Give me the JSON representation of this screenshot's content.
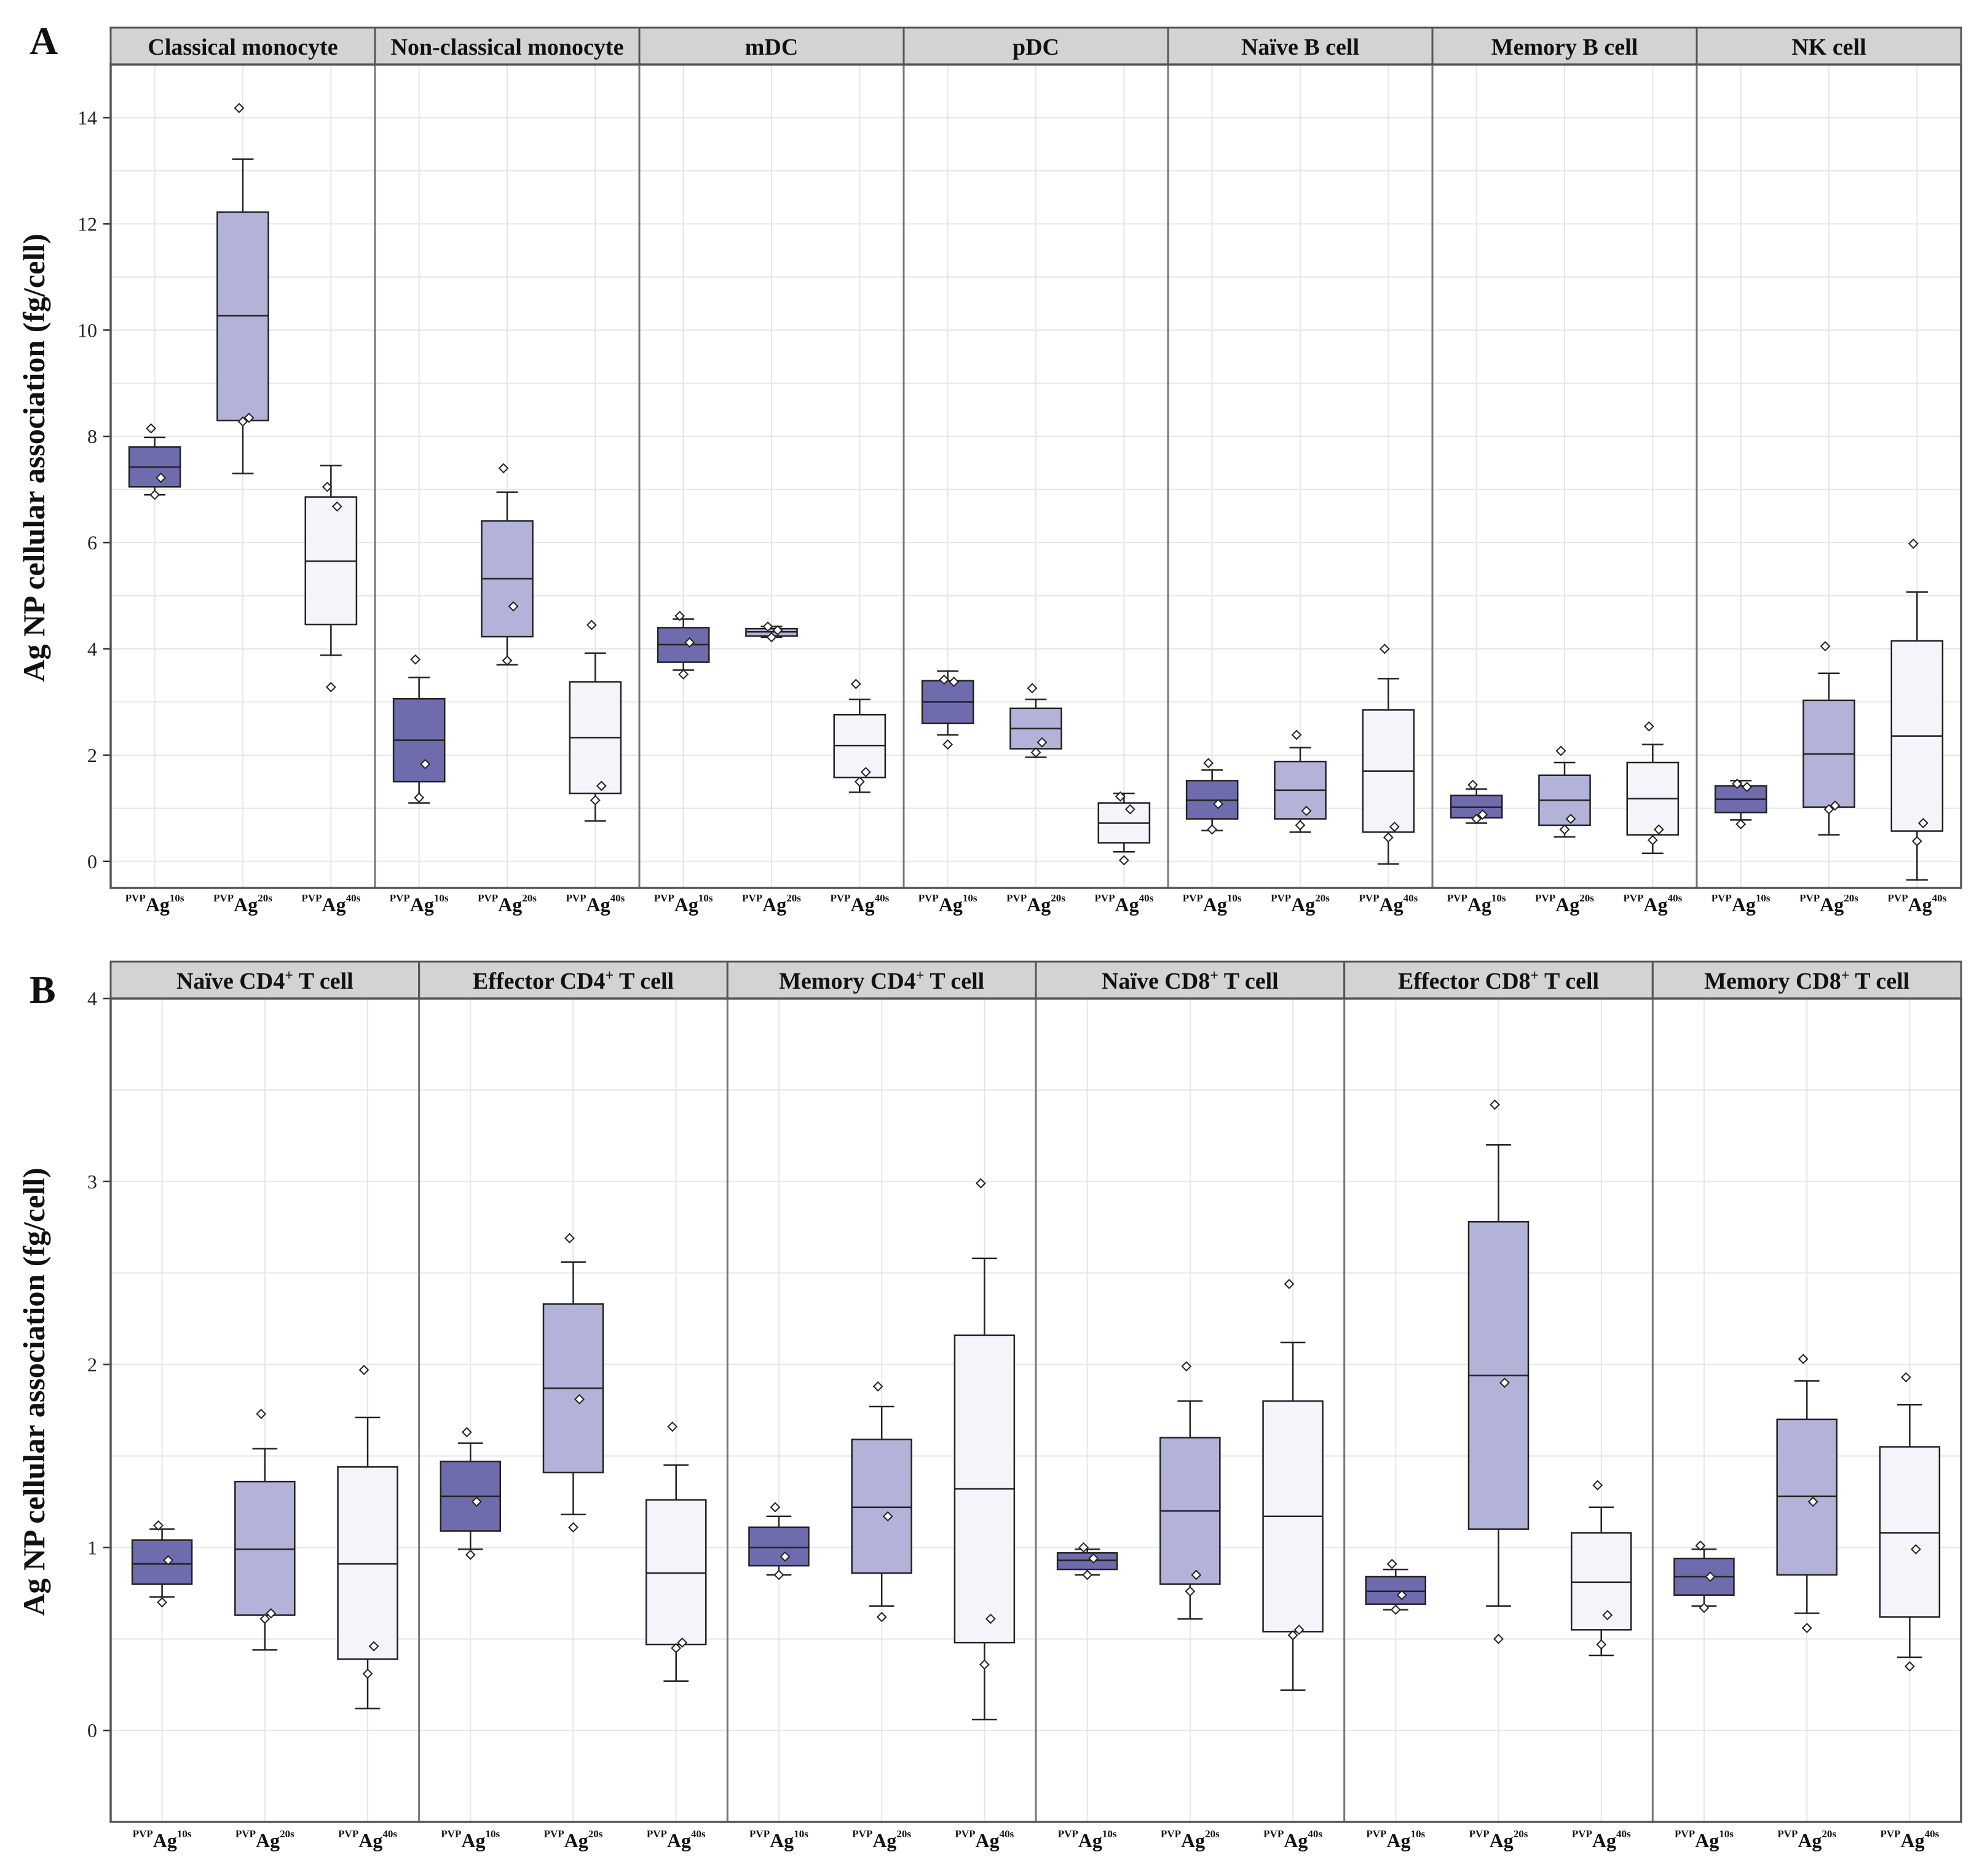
{
  "figure": {
    "panel_a_letter": "A",
    "panel_b_letter": "B"
  },
  "colors": {
    "Ag10s": "#6e6cad",
    "Ag20s": "#b3b2d8",
    "Ag40s": "#f4f4fb",
    "frame": "#555555",
    "strip": "#d3d3d3",
    "grid": "#e6e6e6"
  },
  "chart_data": [
    {
      "type": "box",
      "panel": "A",
      "ylabel": "Ag NP cellular association (fg/cell)",
      "ylim": [
        -0.5,
        15
      ],
      "yticks": [
        0,
        2,
        4,
        6,
        8,
        10,
        12,
        14
      ],
      "series_labels": [
        "Ag10s",
        "Ag20s",
        "Ag40s"
      ],
      "tick_prefix": "PVP",
      "tick_base": "Ag",
      "tick_sups": [
        "10s",
        "20s",
        "40s"
      ],
      "facets": [
        {
          "name": "Classical monocyte",
          "boxes": [
            {
              "series": "Ag10s",
              "min": 6.9,
              "q1": 7.05,
              "median": 7.42,
              "q3": 7.8,
              "max": 7.98,
              "points": [
                8.15,
                7.22,
                6.9
              ]
            },
            {
              "series": "Ag20s",
              "min": 7.3,
              "q1": 8.3,
              "median": 10.27,
              "q3": 12.22,
              "max": 13.22,
              "points": [
                14.18,
                8.35,
                8.28
              ]
            },
            {
              "series": "Ag40s",
              "min": 3.88,
              "q1": 4.46,
              "median": 5.65,
              "q3": 6.86,
              "max": 7.45,
              "points": [
                7.05,
                6.68,
                3.28
              ]
            }
          ]
        },
        {
          "name": "Non-classical monocyte",
          "boxes": [
            {
              "series": "Ag10s",
              "min": 1.1,
              "q1": 1.5,
              "median": 2.28,
              "q3": 3.06,
              "max": 3.46,
              "points": [
                3.8,
                1.83,
                1.2
              ]
            },
            {
              "series": "Ag20s",
              "min": 3.7,
              "q1": 4.23,
              "median": 5.32,
              "q3": 6.41,
              "max": 6.95,
              "points": [
                7.4,
                4.8,
                3.78
              ]
            },
            {
              "series": "Ag40s",
              "min": 0.76,
              "q1": 1.28,
              "median": 2.33,
              "q3": 3.38,
              "max": 3.92,
              "points": [
                4.45,
                1.42,
                1.15
              ]
            }
          ]
        },
        {
          "name": "mDC",
          "boxes": [
            {
              "series": "Ag10s",
              "min": 3.6,
              "q1": 3.75,
              "median": 4.08,
              "q3": 4.4,
              "max": 4.56,
              "points": [
                4.62,
                4.12,
                3.52
              ]
            },
            {
              "series": "Ag20s",
              "min": 4.22,
              "q1": 4.24,
              "median": 4.32,
              "q3": 4.38,
              "max": 4.42,
              "points": [
                4.42,
                4.35,
                4.22
              ]
            },
            {
              "series": "Ag40s",
              "min": 1.3,
              "q1": 1.58,
              "median": 2.18,
              "q3": 2.76,
              "max": 3.05,
              "points": [
                3.34,
                1.68,
                1.5
              ]
            }
          ]
        },
        {
          "name": "pDC",
          "boxes": [
            {
              "series": "Ag10s",
              "min": 2.38,
              "q1": 2.6,
              "median": 3.0,
              "q3": 3.4,
              "max": 3.58,
              "points": [
                3.42,
                3.38,
                2.2
              ]
            },
            {
              "series": "Ag20s",
              "min": 1.96,
              "q1": 2.12,
              "median": 2.5,
              "q3": 2.88,
              "max": 3.05,
              "points": [
                3.26,
                2.24,
                2.05
              ]
            },
            {
              "series": "Ag40s",
              "min": 0.18,
              "q1": 0.35,
              "median": 0.72,
              "q3": 1.1,
              "max": 1.28,
              "points": [
                1.22,
                0.98,
                0.02
              ]
            }
          ]
        },
        {
          "name": "Naïve B cell",
          "boxes": [
            {
              "series": "Ag10s",
              "min": 0.58,
              "q1": 0.8,
              "median": 1.15,
              "q3": 1.52,
              "max": 1.72,
              "points": [
                1.85,
                1.08,
                0.6
              ]
            },
            {
              "series": "Ag20s",
              "min": 0.55,
              "q1": 0.8,
              "median": 1.34,
              "q3": 1.88,
              "max": 2.14,
              "points": [
                2.38,
                0.95,
                0.68
              ]
            },
            {
              "series": "Ag40s",
              "min": -0.05,
              "q1": 0.55,
              "median": 1.7,
              "q3": 2.85,
              "max": 3.44,
              "points": [
                4.0,
                0.65,
                0.45
              ]
            }
          ]
        },
        {
          "name": "Memory B cell",
          "boxes": [
            {
              "series": "Ag10s",
              "min": 0.72,
              "q1": 0.82,
              "median": 1.02,
              "q3": 1.24,
              "max": 1.36,
              "points": [
                1.44,
                0.88,
                0.8
              ]
            },
            {
              "series": "Ag20s",
              "min": 0.46,
              "q1": 0.68,
              "median": 1.15,
              "q3": 1.62,
              "max": 1.86,
              "points": [
                2.08,
                0.8,
                0.6
              ]
            },
            {
              "series": "Ag40s",
              "min": 0.15,
              "q1": 0.5,
              "median": 1.18,
              "q3": 1.86,
              "max": 2.2,
              "points": [
                2.54,
                0.6,
                0.4
              ]
            }
          ]
        },
        {
          "name": "NK cell",
          "boxes": [
            {
              "series": "Ag10s",
              "min": 0.78,
              "q1": 0.92,
              "median": 1.17,
              "q3": 1.42,
              "max": 1.52,
              "points": [
                1.46,
                1.4,
                0.7
              ]
            },
            {
              "series": "Ag20s",
              "min": 0.5,
              "q1": 1.02,
              "median": 2.02,
              "q3": 3.03,
              "max": 3.54,
              "points": [
                4.05,
                1.05,
                0.98
              ]
            },
            {
              "series": "Ag40s",
              "min": -0.35,
              "q1": 0.57,
              "median": 2.36,
              "q3": 4.15,
              "max": 5.07,
              "points": [
                5.98,
                0.72,
                0.38
              ]
            }
          ]
        }
      ]
    },
    {
      "type": "box",
      "panel": "B",
      "ylabel": "Ag NP cellular association (fg/cell)",
      "ylim": [
        -0.5,
        4
      ],
      "yticks": [
        0,
        1,
        2,
        3,
        4
      ],
      "series_labels": [
        "Ag10s",
        "Ag20s",
        "Ag40s"
      ],
      "tick_prefix": "PVP",
      "tick_base": "Ag",
      "tick_sups": [
        "10s",
        "20s",
        "40s"
      ],
      "facets": [
        {
          "name": "Naïve CD4",
          "name_sup": "+",
          "name_suffix": " T  cell",
          "boxes": [
            {
              "series": "Ag10s",
              "min": 0.73,
              "q1": 0.8,
              "median": 0.91,
              "q3": 1.04,
              "max": 1.1,
              "points": [
                1.12,
                0.93,
                0.7
              ]
            },
            {
              "series": "Ag20s",
              "min": 0.44,
              "q1": 0.63,
              "median": 0.99,
              "q3": 1.36,
              "max": 1.54,
              "points": [
                1.73,
                0.64,
                0.61
              ]
            },
            {
              "series": "Ag40s",
              "min": 0.12,
              "q1": 0.39,
              "median": 0.91,
              "q3": 1.44,
              "max": 1.71,
              "points": [
                1.97,
                0.46,
                0.31
              ]
            }
          ]
        },
        {
          "name": "Effector CD4",
          "name_sup": "+",
          "name_suffix": " T  cell",
          "boxes": [
            {
              "series": "Ag10s",
              "min": 0.99,
              "q1": 1.09,
              "median": 1.28,
              "q3": 1.47,
              "max": 1.57,
              "points": [
                1.63,
                1.25,
                0.96
              ]
            },
            {
              "series": "Ag20s",
              "min": 1.18,
              "q1": 1.41,
              "median": 1.87,
              "q3": 2.33,
              "max": 2.56,
              "points": [
                2.69,
                1.81,
                1.11
              ]
            },
            {
              "series": "Ag40s",
              "min": 0.27,
              "q1": 0.47,
              "median": 0.86,
              "q3": 1.26,
              "max": 1.45,
              "points": [
                1.66,
                0.48,
                0.45
              ]
            }
          ]
        },
        {
          "name": "Memory CD4",
          "name_sup": "+",
          "name_suffix": " T  cell",
          "boxes": [
            {
              "series": "Ag10s",
              "min": 0.85,
              "q1": 0.9,
              "median": 1.0,
              "q3": 1.11,
              "max": 1.17,
              "points": [
                1.22,
                0.95,
                0.85
              ]
            },
            {
              "series": "Ag20s",
              "min": 0.68,
              "q1": 0.86,
              "median": 1.22,
              "q3": 1.59,
              "max": 1.77,
              "points": [
                1.88,
                1.17,
                0.62
              ]
            },
            {
              "series": "Ag40s",
              "min": 0.06,
              "q1": 0.48,
              "median": 1.32,
              "q3": 2.16,
              "max": 2.58,
              "points": [
                2.99,
                0.61,
                0.36
              ]
            }
          ]
        },
        {
          "name": "Naïve CD8",
          "name_sup": "+",
          "name_suffix": " T  cell",
          "boxes": [
            {
              "series": "Ag10s",
              "min": 0.85,
              "q1": 0.88,
              "median": 0.93,
              "q3": 0.97,
              "max": 0.99,
              "points": [
                1.0,
                0.94,
                0.85
              ]
            },
            {
              "series": "Ag20s",
              "min": 0.61,
              "q1": 0.8,
              "median": 1.2,
              "q3": 1.6,
              "max": 1.8,
              "points": [
                1.99,
                0.85,
                0.76
              ]
            },
            {
              "series": "Ag40s",
              "min": 0.22,
              "q1": 0.54,
              "median": 1.17,
              "q3": 1.8,
              "max": 2.12,
              "points": [
                2.44,
                0.55,
                0.52
              ]
            }
          ]
        },
        {
          "name": "Effector CD8",
          "name_sup": "+",
          "name_suffix": " T  cell",
          "boxes": [
            {
              "series": "Ag10s",
              "min": 0.66,
              "q1": 0.69,
              "median": 0.76,
              "q3": 0.84,
              "max": 0.88,
              "points": [
                0.91,
                0.74,
                0.66
              ]
            },
            {
              "series": "Ag20s",
              "min": 0.68,
              "q1": 1.1,
              "median": 1.94,
              "q3": 2.78,
              "max": 3.2,
              "points": [
                3.42,
                1.9,
                0.5
              ]
            },
            {
              "series": "Ag40s",
              "min": 0.41,
              "q1": 0.55,
              "median": 0.81,
              "q3": 1.08,
              "max": 1.22,
              "points": [
                1.34,
                0.63,
                0.47
              ]
            }
          ]
        },
        {
          "name": "Memory CD8",
          "name_sup": "+",
          "name_suffix": " T  cell",
          "boxes": [
            {
              "series": "Ag10s",
              "min": 0.68,
              "q1": 0.74,
              "median": 0.84,
              "q3": 0.94,
              "max": 0.99,
              "points": [
                1.01,
                0.84,
                0.67
              ]
            },
            {
              "series": "Ag20s",
              "min": 0.64,
              "q1": 0.85,
              "median": 1.28,
              "q3": 1.7,
              "max": 1.91,
              "points": [
                2.03,
                1.25,
                0.56
              ]
            },
            {
              "series": "Ag40s",
              "min": 0.4,
              "q1": 0.62,
              "median": 1.08,
              "q3": 1.55,
              "max": 1.78,
              "points": [
                1.93,
                0.99,
                0.35
              ]
            }
          ]
        }
      ]
    }
  ]
}
